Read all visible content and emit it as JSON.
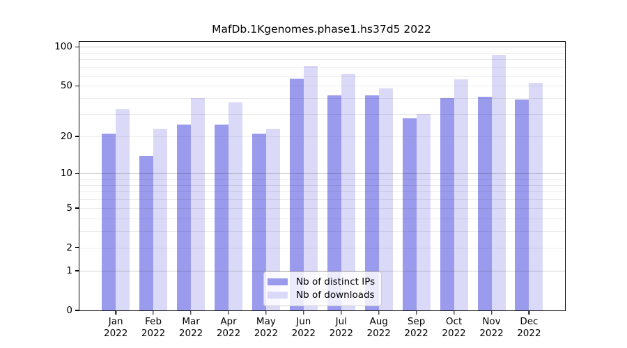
{
  "title": "MafDb.1Kgenomes.phase1.hs37d5 2022",
  "chart_data": {
    "type": "bar",
    "title": "MafDb.1Kgenomes.phase1.hs37d5 2022",
    "categories": [
      "Jan",
      "Feb",
      "Mar",
      "Apr",
      "May",
      "Jun",
      "Jul",
      "Aug",
      "Sep",
      "Oct",
      "Nov",
      "Dec"
    ],
    "year_label": "2022",
    "series": [
      {
        "name": "Nb of distinct IPs",
        "color": "#9b9bee",
        "values": [
          21,
          14,
          25,
          25,
          21,
          57,
          42,
          42,
          28,
          40,
          41,
          39
        ]
      },
      {
        "name": "Nb of downloads",
        "color": "#dadaf8",
        "values": [
          33,
          23,
          40,
          37,
          23,
          71,
          62,
          48,
          30,
          56,
          87,
          53
        ]
      }
    ],
    "xlabel": "",
    "ylabel": "",
    "y_scale": "log10(1+x)",
    "y_ticks": [
      0,
      1,
      2,
      5,
      10,
      20,
      50,
      100
    ],
    "y_minor_gridlines": [
      2,
      3,
      4,
      5,
      6,
      7,
      8,
      9,
      20,
      30,
      40,
      50,
      60,
      70,
      80,
      90
    ],
    "y_major_gridlines": [
      1,
      10,
      100
    ],
    "ylim": [
      0,
      110
    ],
    "grid": true,
    "legend_position": "lower center"
  }
}
